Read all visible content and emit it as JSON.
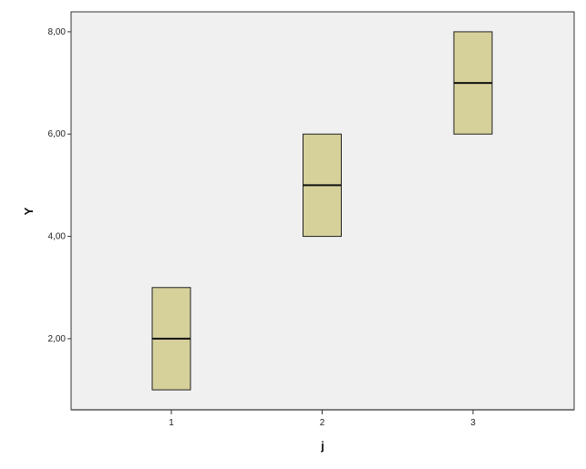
{
  "chart_data": {
    "type": "boxplot",
    "xlabel": "j",
    "ylabel": "Y",
    "categories": [
      "1",
      "2",
      "3"
    ],
    "boxes": [
      {
        "category": "1",
        "min": 1,
        "q1": 1,
        "median": 2,
        "q3": 3,
        "max": 3
      },
      {
        "category": "2",
        "min": 4,
        "q1": 4,
        "median": 5,
        "q3": 6,
        "max": 6
      },
      {
        "category": "3",
        "min": 6,
        "q1": 6,
        "median": 7,
        "q3": 8,
        "max": 8
      }
    ],
    "yticks": [
      2,
      4,
      6,
      8
    ],
    "ytick_labels": [
      "2,00",
      "4,00",
      "6,00",
      "8,00"
    ],
    "ylim": [
      0.61,
      8.39
    ],
    "grid": false,
    "colors": {
      "box": "#d6d09b",
      "plot_bg": "#f0f0f0"
    }
  }
}
